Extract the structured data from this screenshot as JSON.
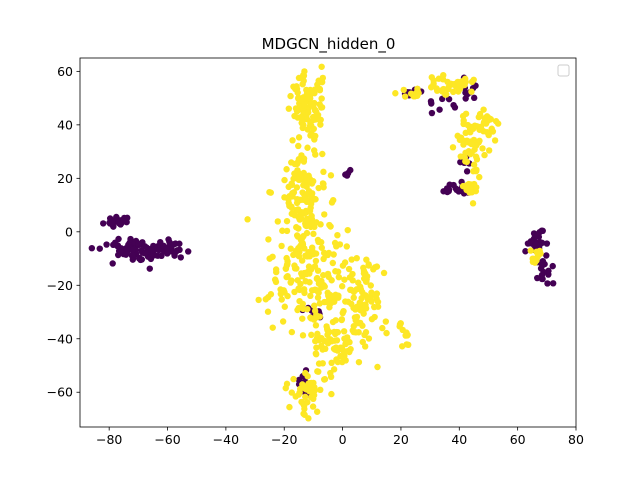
{
  "chart_data": {
    "type": "scatter",
    "title": "MDGCN_hidden_0",
    "xlabel": "",
    "ylabel": "",
    "xlim": [
      -90,
      80
    ],
    "ylim": [
      -73,
      65
    ],
    "xticks": [
      -80,
      -60,
      -40,
      -20,
      0,
      20,
      40,
      60,
      80
    ],
    "yticks": [
      -60,
      -40,
      -20,
      0,
      20,
      40,
      60
    ],
    "xtick_labels": [
      "−80",
      "−60",
      "−40",
      "−20",
      "0",
      "20",
      "40",
      "60",
      "80"
    ],
    "ytick_labels": [
      "−60",
      "−40",
      "−20",
      "0",
      "20",
      "40",
      "60"
    ],
    "grid": false,
    "legend": {
      "placement": "top-right",
      "entries": []
    },
    "series": [
      {
        "color": "#440154",
        "clusters": [
          {
            "cx": -77,
            "cy": 4,
            "sx": 2.0,
            "sy": 1.2,
            "n": 30,
            "seed": 11
          },
          {
            "cx": -70,
            "cy": -7,
            "sx": 6.0,
            "sy": 2.2,
            "n": 75,
            "seed": 12
          },
          {
            "cx": -60,
            "cy": -6,
            "sx": 3.0,
            "sy": 1.5,
            "n": 25,
            "seed": 13
          },
          {
            "cx": -13,
            "cy": -57,
            "sx": 1.2,
            "sy": 3.0,
            "n": 10,
            "seed": 14
          },
          {
            "cx": -9,
            "cy": -30,
            "sx": 1.5,
            "sy": 1.5,
            "n": 8,
            "seed": 15
          },
          {
            "cx": 2,
            "cy": 22,
            "sx": 0.5,
            "sy": 1.2,
            "n": 4,
            "seed": 16
          },
          {
            "cx": 40,
            "cy": 16,
            "sx": 3.0,
            "sy": 1.0,
            "n": 25,
            "seed": 17
          },
          {
            "cx": 23,
            "cy": 52,
            "sx": 1.5,
            "sy": 0.8,
            "n": 10,
            "seed": 18
          },
          {
            "cx": 33,
            "cy": 48,
            "sx": 3.0,
            "sy": 1.5,
            "n": 8,
            "seed": 19
          },
          {
            "cx": 43,
            "cy": 53,
            "sx": 1.5,
            "sy": 3.0,
            "n": 10,
            "seed": 20
          },
          {
            "cx": 42,
            "cy": 26,
            "sx": 1.0,
            "sy": 2.0,
            "n": 6,
            "seed": 21
          },
          {
            "cx": 66,
            "cy": -5,
            "sx": 1.8,
            "sy": 3.5,
            "n": 25,
            "seed": 22
          },
          {
            "cx": 70,
            "cy": -15,
            "sx": 1.5,
            "sy": 2.5,
            "n": 15,
            "seed": 23
          }
        ]
      },
      {
        "color": "#fde725",
        "clusters": [
          {
            "cx": -12,
            "cy": 47,
            "sx": 3.0,
            "sy": 6.0,
            "n": 90,
            "seed": 31
          },
          {
            "cx": -14,
            "cy": 15,
            "sx": 4.0,
            "sy": 10.0,
            "n": 120,
            "seed": 32
          },
          {
            "cx": -12,
            "cy": -15,
            "sx": 7.0,
            "sy": 10.0,
            "n": 160,
            "seed": 33
          },
          {
            "cx": -3,
            "cy": -40,
            "sx": 5.0,
            "sy": 8.0,
            "n": 90,
            "seed": 34
          },
          {
            "cx": 7,
            "cy": -24,
            "sx": 4.0,
            "sy": 9.0,
            "n": 80,
            "seed": 35
          },
          {
            "cx": -12,
            "cy": -60,
            "sx": 3.0,
            "sy": 4.0,
            "n": 45,
            "seed": 36
          },
          {
            "cx": 21,
            "cy": -39,
            "sx": 1.0,
            "sy": 2.5,
            "n": 12,
            "seed": 37
          },
          {
            "cx": 37,
            "cy": 55,
            "sx": 4.0,
            "sy": 2.0,
            "n": 35,
            "seed": 38
          },
          {
            "cx": 24,
            "cy": 52,
            "sx": 2.5,
            "sy": 1.0,
            "n": 15,
            "seed": 39
          },
          {
            "cx": 44,
            "cy": 33,
            "sx": 2.5,
            "sy": 6.0,
            "n": 55,
            "seed": 40
          },
          {
            "cx": 50,
            "cy": 40,
            "sx": 2.0,
            "sy": 2.5,
            "n": 20,
            "seed": 41
          },
          {
            "cx": 43,
            "cy": 16,
            "sx": 1.5,
            "sy": 2.0,
            "n": 12,
            "seed": 42
          },
          {
            "cx": 66,
            "cy": -9,
            "sx": 1.2,
            "sy": 3.0,
            "n": 10,
            "seed": 43
          }
        ]
      }
    ]
  }
}
